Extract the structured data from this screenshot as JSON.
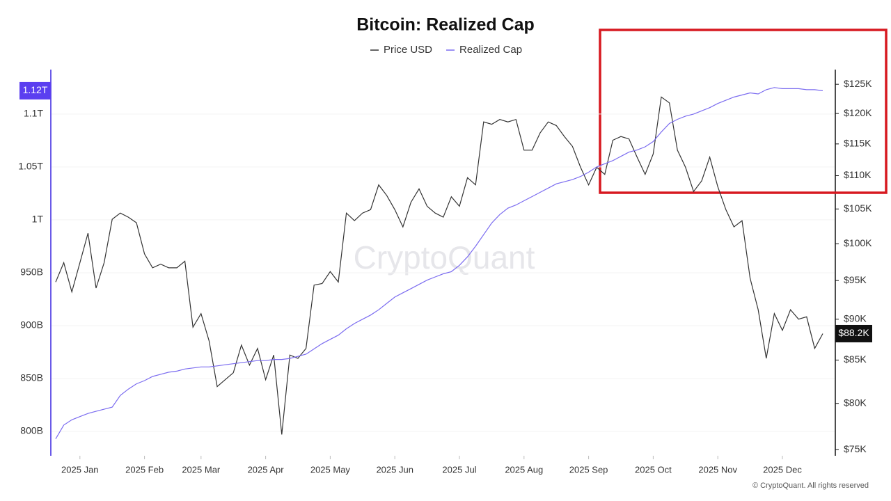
{
  "chart_data": {
    "type": "line",
    "title": "Bitcoin: Realized Cap",
    "watermark": "CryptoQuant",
    "credit": "© CryptoQuant. All rights reserved",
    "categories": [
      null,
      null,
      null,
      "2025 Jan",
      null,
      null,
      null,
      null,
      null,
      null,
      null,
      "2025 Feb",
      null,
      null,
      null,
      null,
      null,
      null,
      "2025 Mar",
      null,
      null,
      null,
      null,
      null,
      null,
      null,
      "2025 Apr",
      null,
      null,
      null,
      null,
      null,
      null,
      null,
      "2025 May",
      null,
      null,
      null,
      null,
      null,
      null,
      null,
      "2025 Jun",
      null,
      null,
      null,
      null,
      null,
      null,
      null,
      "2025 Jul",
      null,
      null,
      null,
      null,
      null,
      null,
      null,
      "2025 Aug",
      null,
      null,
      null,
      null,
      null,
      null,
      null,
      "2025 Sep",
      null,
      null,
      null,
      null,
      null,
      null,
      null,
      "2025 Oct",
      null,
      null,
      null,
      null,
      null,
      null,
      null,
      "2025 Nov",
      null,
      null,
      null,
      null,
      null,
      null,
      null,
      "2025 Dec",
      null,
      null,
      null,
      null,
      null
    ],
    "series": [
      {
        "name": "Price USD",
        "color": "#333333",
        "axis": "y2",
        "last_label": "$88.2K",
        "values": [
          94800,
          97400,
          93500,
          97400,
          101500,
          94000,
          97400,
          103500,
          104400,
          103800,
          103000,
          98600,
          96700,
          97200,
          96700,
          96700,
          97600,
          89000,
          90700,
          87300,
          81900,
          82700,
          83500,
          86800,
          84400,
          86400,
          82700,
          85600,
          76600,
          85600,
          85200,
          86400,
          94400,
          94600,
          96200,
          94800,
          104400,
          103300,
          104400,
          104900,
          108600,
          107000,
          104900,
          102400,
          106000,
          108000,
          105400,
          104400,
          103800,
          106800,
          105400,
          109700,
          108600,
          118600,
          118200,
          119000,
          118600,
          119000,
          114000,
          114000,
          116800,
          118600,
          118000,
          116200,
          114600,
          111300,
          108600,
          111300,
          110200,
          115600,
          116200,
          115800,
          112900,
          110200,
          113400,
          122800,
          121800,
          114000,
          111300,
          107600,
          109200,
          112900,
          108300,
          104900,
          102400,
          103300,
          95300,
          91200,
          85200,
          90700,
          88600,
          91200,
          90000,
          90300,
          86400,
          88200
        ]
      },
      {
        "name": "Realized Cap",
        "color": "#7b6cf0",
        "axis": "y",
        "last_label": "1.12T",
        "values": [
          793000000000.0,
          806000000000.0,
          811000000000.0,
          814000000000.0,
          817000000000.0,
          819000000000.0,
          821000000000.0,
          823000000000.0,
          834000000000.0,
          840000000000.0,
          845000000000.0,
          848000000000.0,
          852000000000.0,
          854000000000.0,
          856000000000.0,
          857000000000.0,
          859000000000.0,
          860000000000.0,
          861000000000.0,
          861000000000.0,
          862000000000.0,
          863000000000.0,
          864000000000.0,
          865000000000.0,
          866000000000.0,
          867000000000.0,
          867000000000.0,
          868000000000.0,
          868000000000.0,
          869000000000.0,
          871000000000.0,
          873000000000.0,
          878000000000.0,
          883000000000.0,
          887000000000.0,
          891000000000.0,
          897000000000.0,
          902000000000.0,
          906000000000.0,
          910000000000.0,
          915000000000.0,
          921000000000.0,
          927000000000.0,
          931000000000.0,
          935000000000.0,
          939000000000.0,
          943000000000.0,
          946000000000.0,
          949000000000.0,
          951000000000.0,
          957000000000.0,
          965000000000.0,
          975000000000.0,
          986000000000.0,
          997000000000.0,
          1005000000000.0,
          1011000000000.0,
          1014000000000.0,
          1018000000000.0,
          1022000000000.0,
          1026000000000.0,
          1030000000000.0,
          1034000000000.0,
          1036000000000.0,
          1038000000000.0,
          1041000000000.0,
          1045000000000.0,
          1050000000000.0,
          1053000000000.0,
          1056000000000.0,
          1060000000000.0,
          1064000000000.0,
          1066000000000.0,
          1069000000000.0,
          1074000000000.0,
          1083000000000.0,
          1091000000000.0,
          1095000000000.0,
          1098000000000.0,
          1100000000000.0,
          1103000000000.0,
          1106000000000.0,
          1110000000000.0,
          1113000000000.0,
          1116000000000.0,
          1118000000000.0,
          1120000000000.0,
          1119000000000.0,
          1123000000000.0,
          1125000000000.0,
          1124000000000.0,
          1124000000000.0,
          1124000000000.0,
          1123000000000.0,
          1123000000000.0,
          1122000000000.0
        ]
      }
    ],
    "ylim": [
      777000000000.0,
      1142000000000.0
    ],
    "yticks": [
      {
        "value": 800000000000.0,
        "label": "800B"
      },
      {
        "value": 850000000000.0,
        "label": "850B"
      },
      {
        "value": 900000000000.0,
        "label": "900B"
      },
      {
        "value": 950000000000.0,
        "label": "950B"
      },
      {
        "value": 1000000000000.0,
        "label": "1T"
      },
      {
        "value": 1050000000000.0,
        "label": "1.05T"
      },
      {
        "value": 1100000000000.0,
        "label": "1.1T"
      }
    ],
    "y2lim": [
      74350,
      127600
    ],
    "y2scale": "log",
    "y2ticks": [
      {
        "value": 75000,
        "label": "$75K"
      },
      {
        "value": 80000,
        "label": "$80K"
      },
      {
        "value": 85000,
        "label": "$85K"
      },
      {
        "value": 90000,
        "label": "$90K"
      },
      {
        "value": 95000,
        "label": "$95K"
      },
      {
        "value": 100000,
        "label": "$100K"
      },
      {
        "value": 105000,
        "label": "$105K"
      },
      {
        "value": 110000,
        "label": "$110K"
      },
      {
        "value": 115000,
        "label": "$115K"
      },
      {
        "value": 120000,
        "label": "$120K"
      },
      {
        "value": 125000,
        "label": "$125K"
      }
    ],
    "grid": true
  }
}
